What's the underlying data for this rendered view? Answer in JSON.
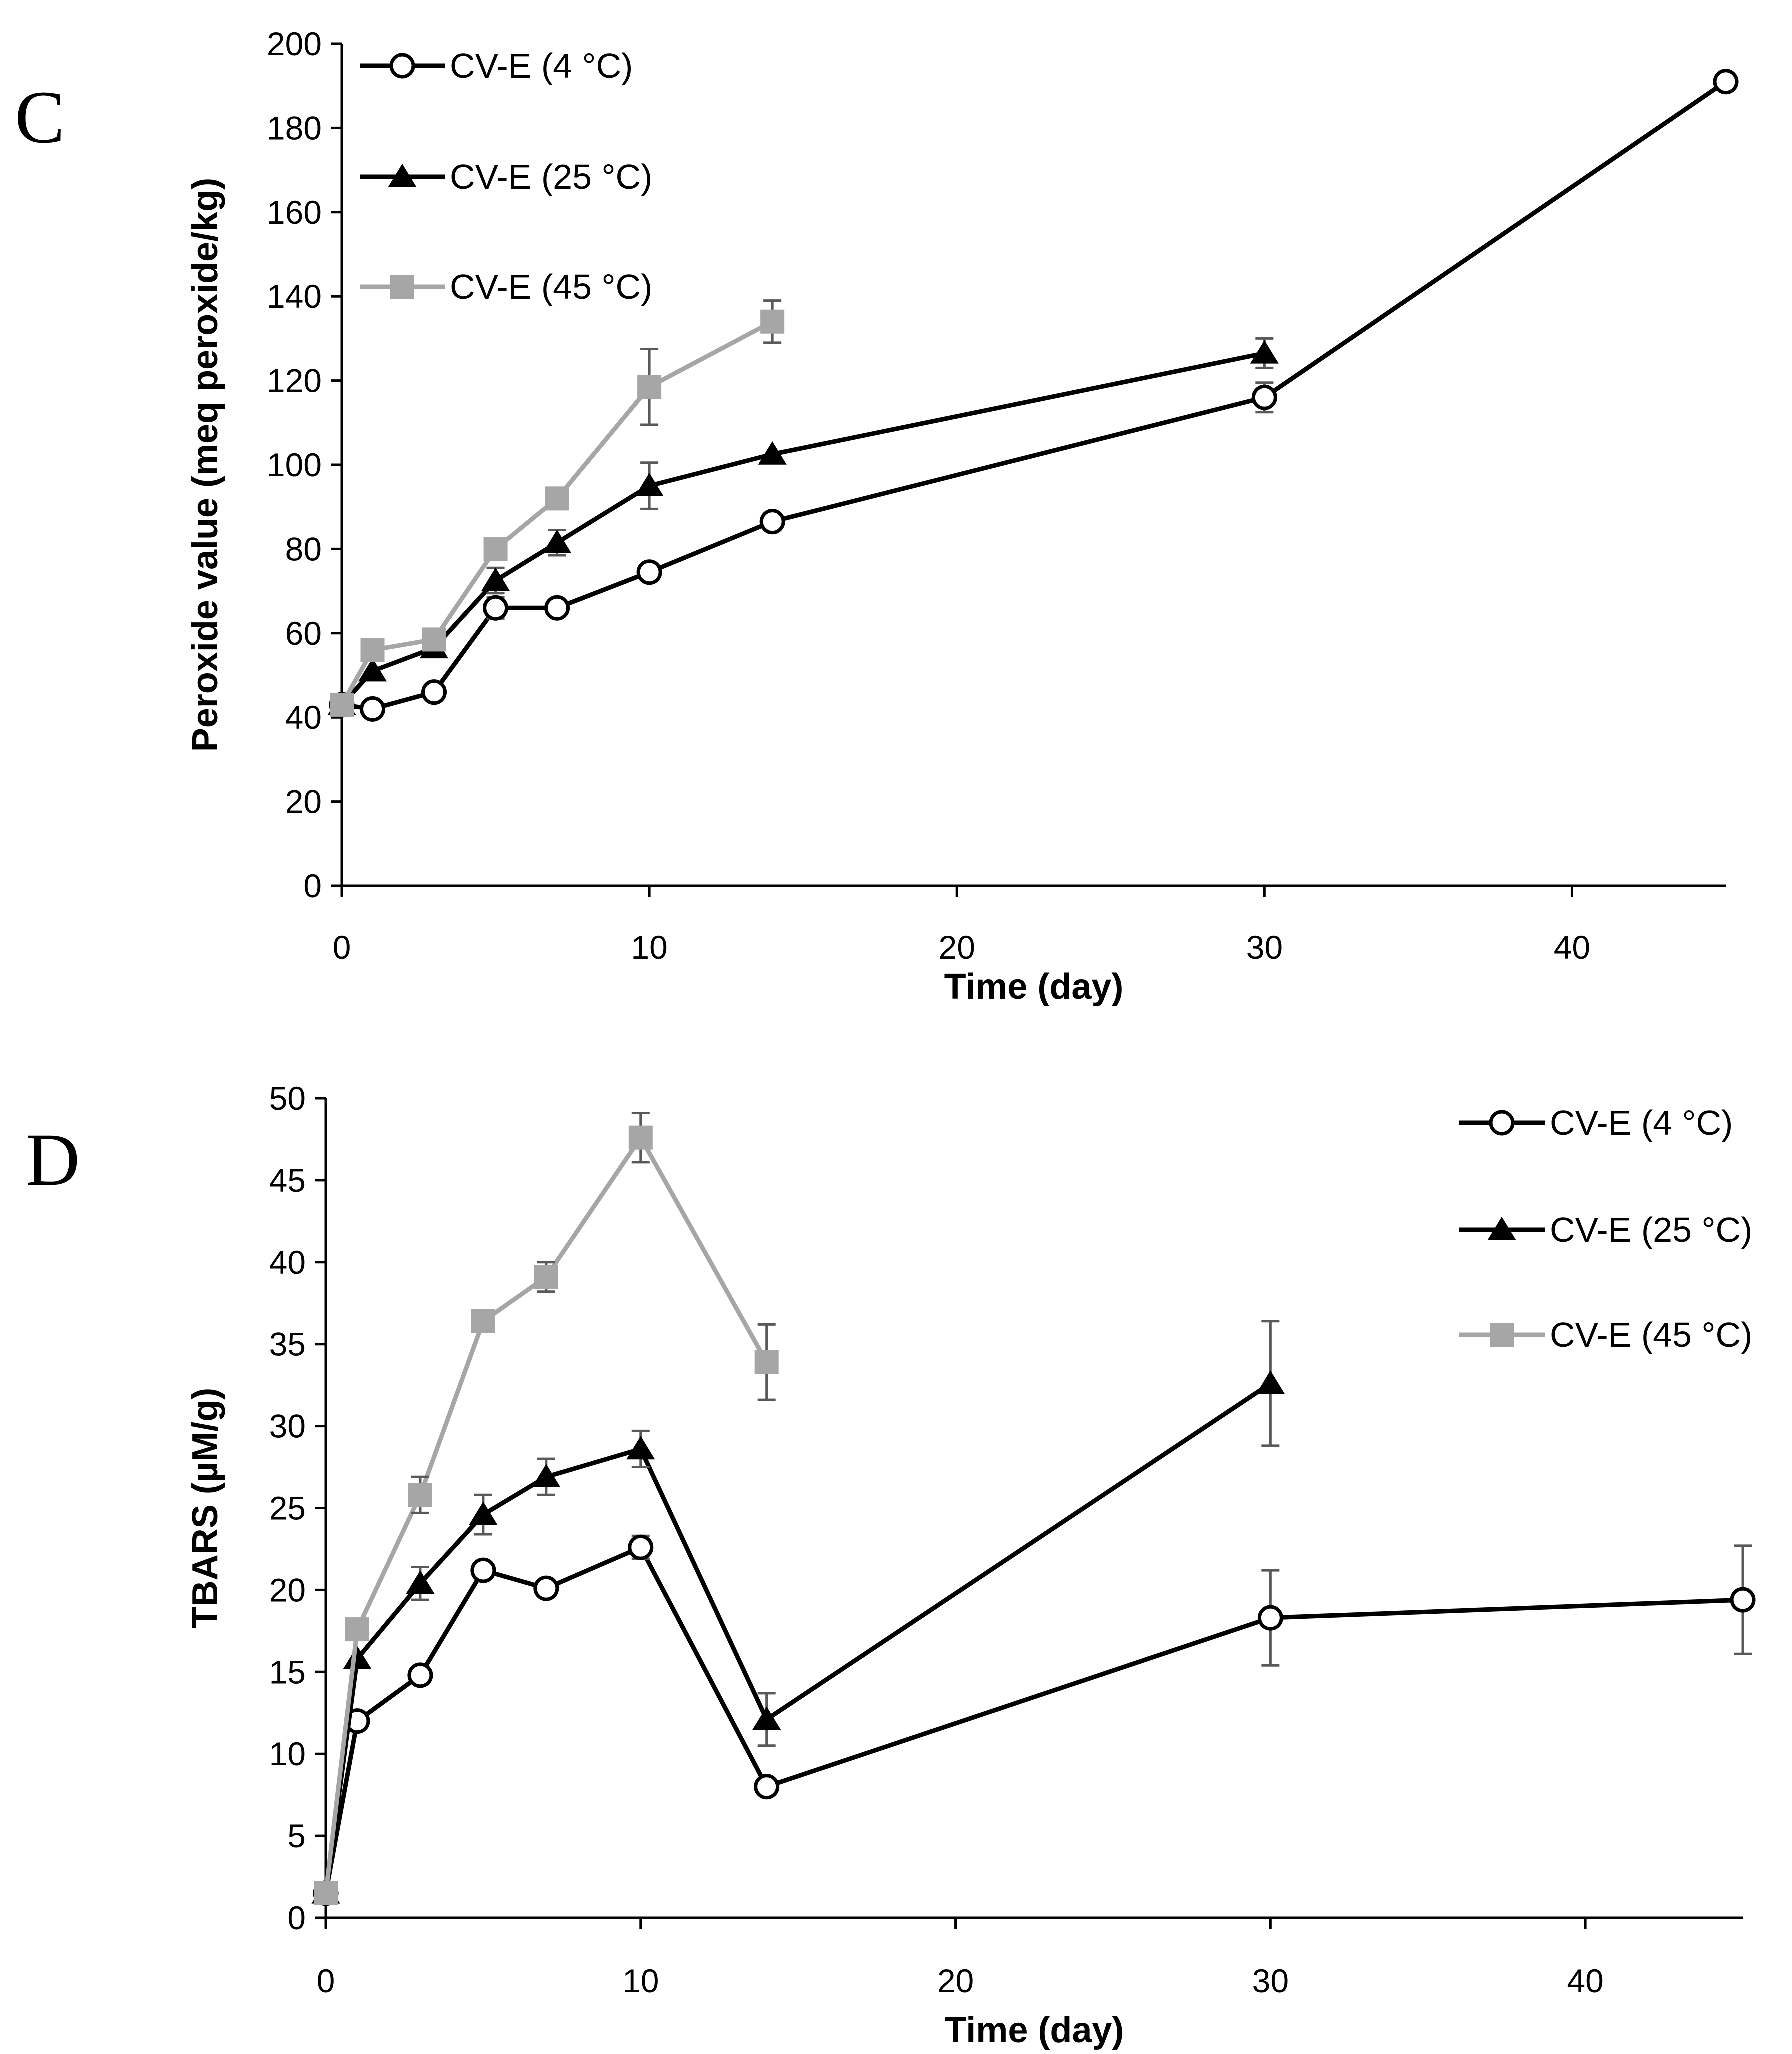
{
  "colors": {
    "s4": "#000000",
    "s25": "#000000",
    "s45": "#a6a6a6",
    "errorbar": "#595959",
    "axis": "#000000"
  },
  "chart_data": [
    {
      "panel": "C",
      "type": "line",
      "title": "",
      "xlabel": "Time (day)",
      "ylabel": "Peroxide value (meq peroxide/kg)",
      "xlim": [
        0,
        45
      ],
      "ylim": [
        0,
        200
      ],
      "xticks": [
        0,
        10,
        20,
        30,
        40
      ],
      "yticks": [
        0,
        20,
        40,
        60,
        80,
        100,
        120,
        140,
        160,
        180,
        200
      ],
      "grid": false,
      "legend": "top-left",
      "series": [
        {
          "name": "CV-E (4 °C)",
          "marker": "circle-open",
          "color": "#000000",
          "x": [
            0,
            1,
            3,
            5,
            7,
            10,
            14,
            30,
            45
          ],
          "y": [
            43,
            42,
            46,
            66,
            66,
            74.5,
            86.5,
            116,
            191
          ],
          "err": [
            0,
            0,
            0,
            2.5,
            0,
            1.5,
            0,
            3.5,
            0
          ]
        },
        {
          "name": "CV-E (25 °C)",
          "marker": "triangle",
          "color": "#000000",
          "x": [
            0,
            1,
            3,
            5,
            7,
            10,
            14,
            30
          ],
          "y": [
            43,
            51,
            56.5,
            72.5,
            81.5,
            95,
            102.5,
            126.5
          ],
          "err": [
            0,
            0,
            0,
            3,
            3,
            5.5,
            0,
            3.5
          ]
        },
        {
          "name": "CV-E (45 °C)",
          "marker": "square",
          "color": "#a6a6a6",
          "x": [
            0,
            1,
            3,
            5,
            7,
            10,
            14
          ],
          "y": [
            43,
            56,
            58.5,
            80,
            92,
            118.5,
            134
          ],
          "err": [
            0,
            0,
            0,
            2.5,
            0,
            9,
            5
          ]
        }
      ]
    },
    {
      "panel": "D",
      "type": "line",
      "title": "",
      "xlabel": "Time (day)",
      "ylabel": "TBARS (µM/g)",
      "xlim": [
        0,
        45
      ],
      "ylim": [
        0,
        50
      ],
      "xticks": [
        0,
        10,
        20,
        30,
        40
      ],
      "yticks": [
        0,
        5,
        10,
        15,
        20,
        25,
        30,
        35,
        40,
        45,
        50
      ],
      "grid": false,
      "legend": "top-right",
      "series": [
        {
          "name": "CV-E (4 °C)",
          "marker": "circle-open",
          "color": "#000000",
          "x": [
            0,
            1,
            3,
            5,
            7,
            10,
            14,
            30,
            45
          ],
          "y": [
            1.5,
            12,
            14.8,
            21.2,
            20.1,
            22.6,
            8,
            18.3,
            19.4
          ],
          "err": [
            0,
            0,
            0,
            0,
            0,
            0.7,
            0,
            2.9,
            3.3
          ]
        },
        {
          "name": "CV-E (25 °C)",
          "marker": "triangle",
          "color": "#000000",
          "x": [
            0,
            1,
            3,
            5,
            7,
            10,
            14,
            30
          ],
          "y": [
            1.5,
            15.8,
            20.4,
            24.6,
            26.9,
            28.6,
            12.1,
            32.6
          ],
          "err": [
            0,
            0,
            1,
            1.2,
            1.1,
            1.1,
            1.6,
            3.8
          ]
        },
        {
          "name": "CV-E (45 °C)",
          "marker": "square",
          "color": "#a6a6a6",
          "x": [
            0,
            1,
            3,
            5,
            7,
            10,
            14
          ],
          "y": [
            1.5,
            17.6,
            25.8,
            36.4,
            39.1,
            47.6,
            33.9
          ],
          "err": [
            0,
            0,
            1.1,
            0,
            0.9,
            1.5,
            2.3
          ]
        }
      ]
    }
  ]
}
